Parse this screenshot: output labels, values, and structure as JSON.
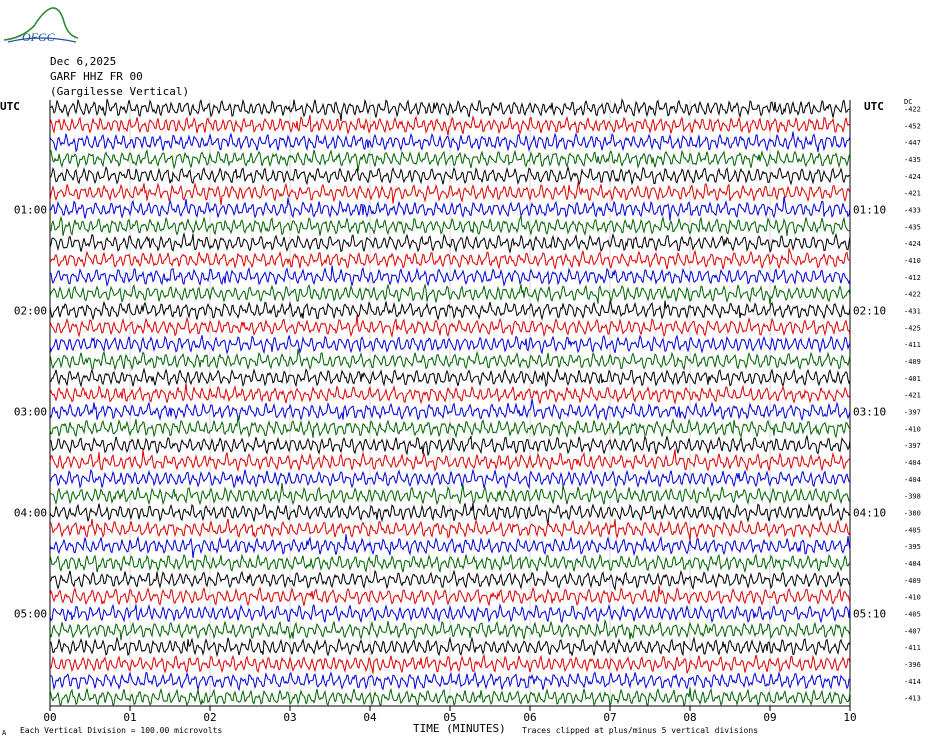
{
  "logo": {
    "text": "OFGC"
  },
  "header": {
    "date": "Dec 6,2025",
    "station": "GARF HHZ FR 00",
    "location": "(Gargilesse Vertical)"
  },
  "left_axis_label": "UTC",
  "right_axis_label": "UTC",
  "right_column_label": "DC",
  "footer": {
    "scale": "Each Vertical Division =  100.00 microvolts",
    "xlabel": "TIME (MINUTES)",
    "clip_note": "Traces clipped at plus/minus 5 vertical divisions",
    "corner_mark": "A"
  },
  "colors": {
    "cycle": [
      "#000000",
      "#e00000",
      "#0000dd",
      "#006400"
    ],
    "grid": "#c8c8c8"
  },
  "chart_data": {
    "type": "line",
    "title": "GARF HHZ FR 00",
    "xlabel": "TIME (MINUTES)",
    "ylabel": "UTC",
    "xlim": [
      0,
      10
    ],
    "x_ticks": [
      "00",
      "01",
      "02",
      "03",
      "04",
      "05",
      "06",
      "07",
      "08",
      "09",
      "10"
    ],
    "traces_per_hour": 6,
    "trace_minutes": 10,
    "left_hour_labels": [
      "01:00",
      "02:00",
      "03:00",
      "04:00",
      "05:00"
    ],
    "right_hour_labels": [
      "01:10",
      "02:10",
      "03:10",
      "04:10",
      "05:10"
    ],
    "dc_offsets": [
      -422,
      -452,
      -447,
      -435,
      -424,
      -421,
      -433,
      -435,
      -424,
      -410,
      -412,
      -422,
      -431,
      -425,
      -411,
      -409,
      -401,
      -421,
      -397,
      -410,
      -397,
      -404,
      -404,
      -398,
      -380,
      -405,
      -395,
      -404,
      -409,
      -410,
      -405,
      -407,
      -411,
      -396,
      -414,
      -413
    ]
  }
}
